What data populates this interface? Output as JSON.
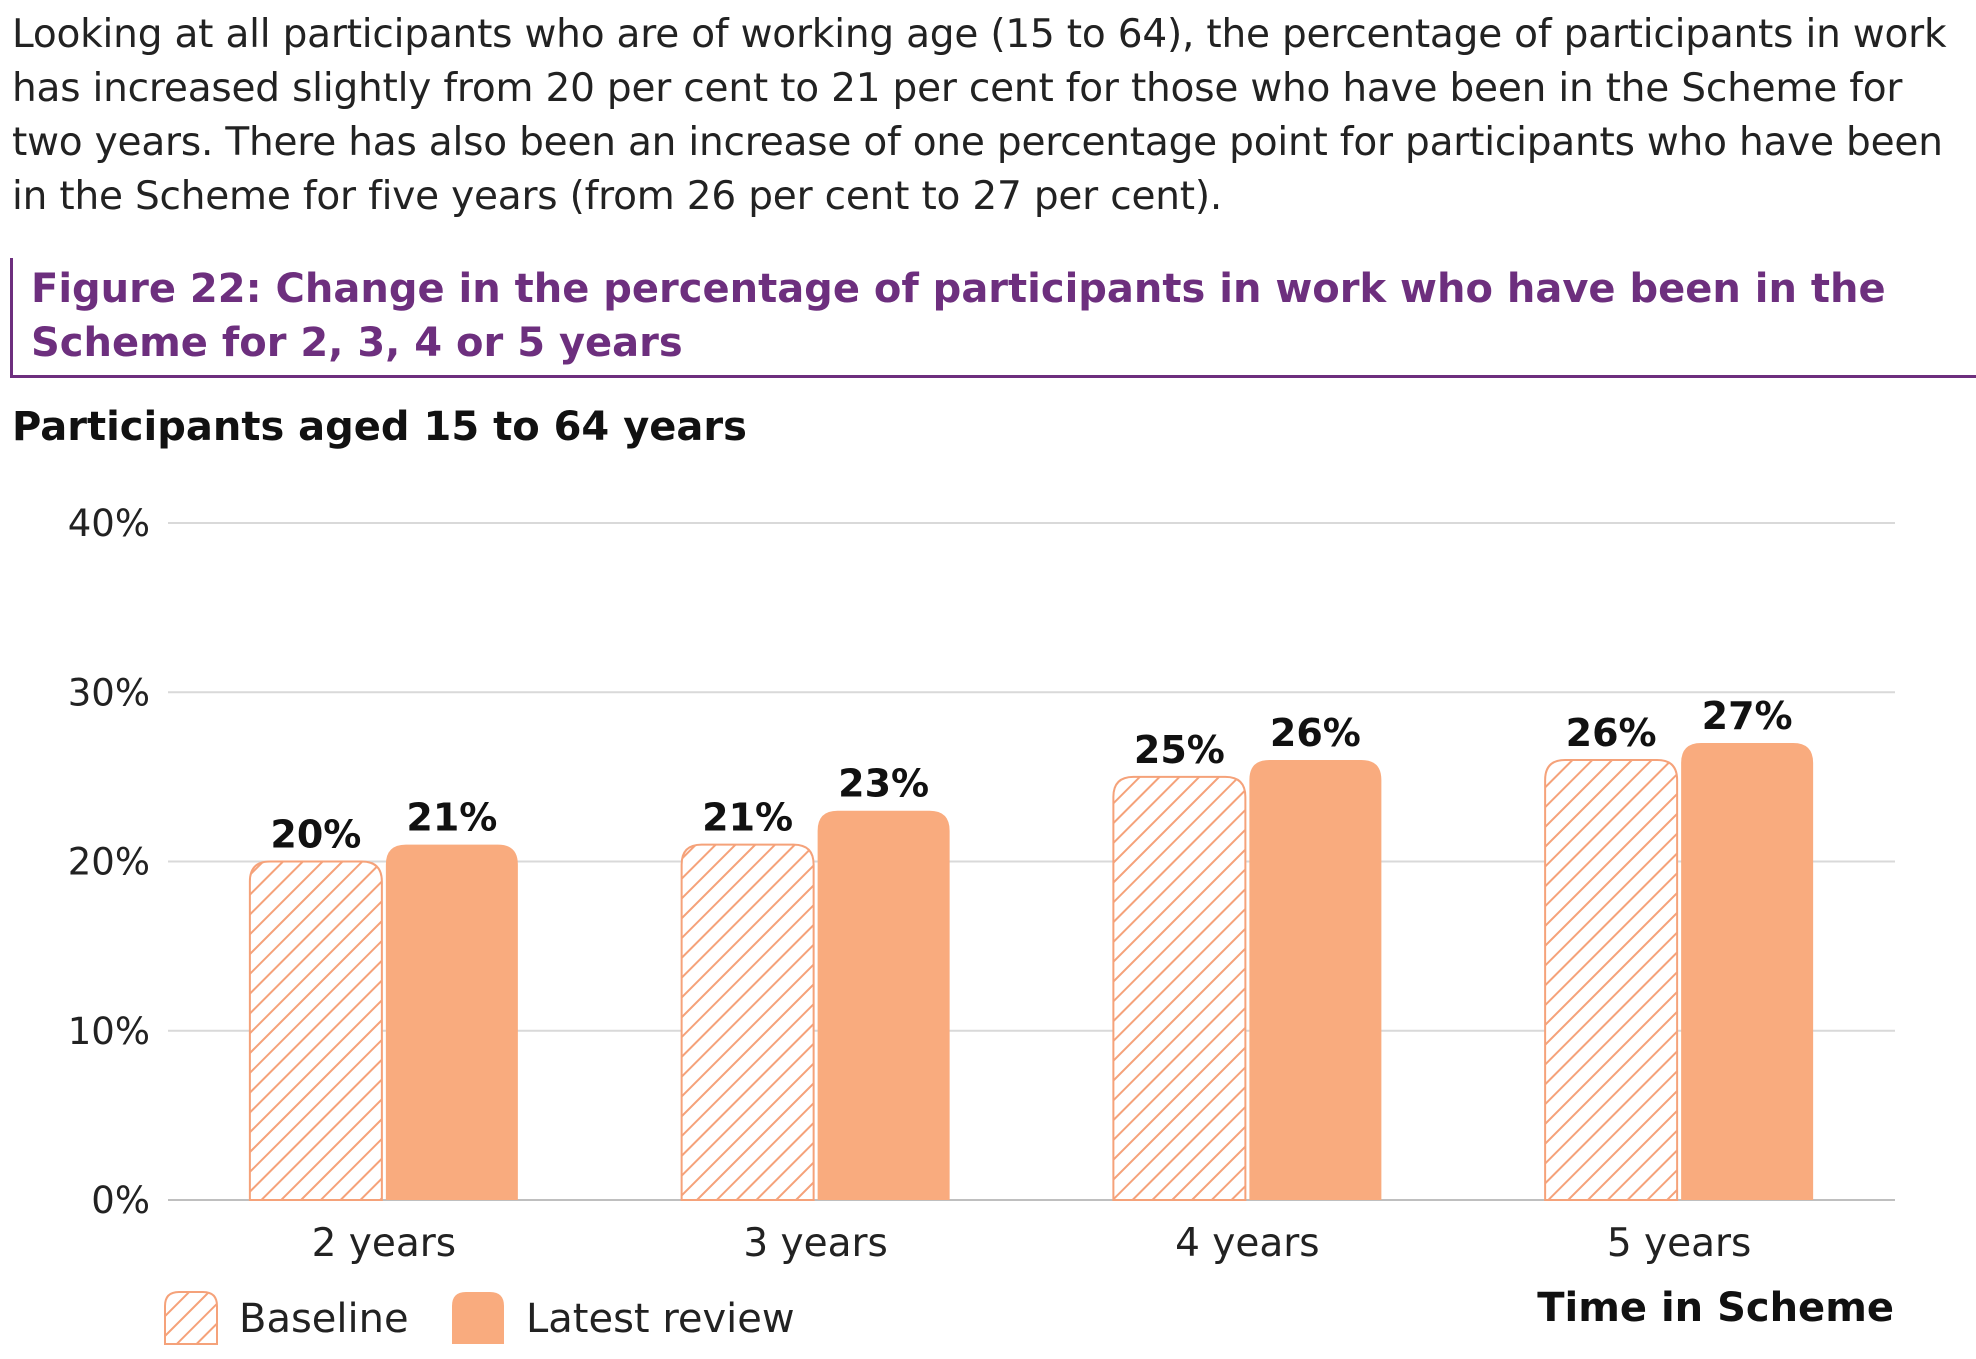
{
  "intro_text": "Looking at all participants who are of working age (15 to 64), the percentage of participants in work has increased slightly from 20 per cent to 21 per cent for those who have been in the Scheme for two years. There has also been an increase of one percentage point for participants who have been in the Scheme for five years (from 26 per cent to 27 per cent).",
  "figure_title": "Figure 22: Change in the percentage of participants in work who have been in the Scheme for 2, 3, 4 or 5 years",
  "colors": {
    "accent": "#6d2f7e",
    "bar": "#f9ab7e",
    "hatch": "#f5a27a",
    "grid": "#d9d9d9"
  },
  "chart_data": {
    "type": "bar",
    "title": "Participants aged 15 to 64 years",
    "xlabel": "Time in Scheme",
    "ylabel": "",
    "categories": [
      "2 years",
      "3 years",
      "4 years",
      "5 years"
    ],
    "series": [
      {
        "name": "Baseline",
        "values": [
          20,
          21,
          25,
          26
        ],
        "data_labels": [
          "20%",
          "21%",
          "25%",
          "26%"
        ],
        "style": "hatched"
      },
      {
        "name": "Latest review",
        "values": [
          21,
          23,
          26,
          27
        ],
        "data_labels": [
          "21%",
          "23%",
          "26%",
          "27%"
        ],
        "style": "solid"
      }
    ],
    "ylim": [
      0,
      40
    ],
    "yticks": [
      "0%",
      "10%",
      "20%",
      "30%",
      "40%"
    ],
    "grid": true,
    "legend_position": "bottom-left"
  }
}
